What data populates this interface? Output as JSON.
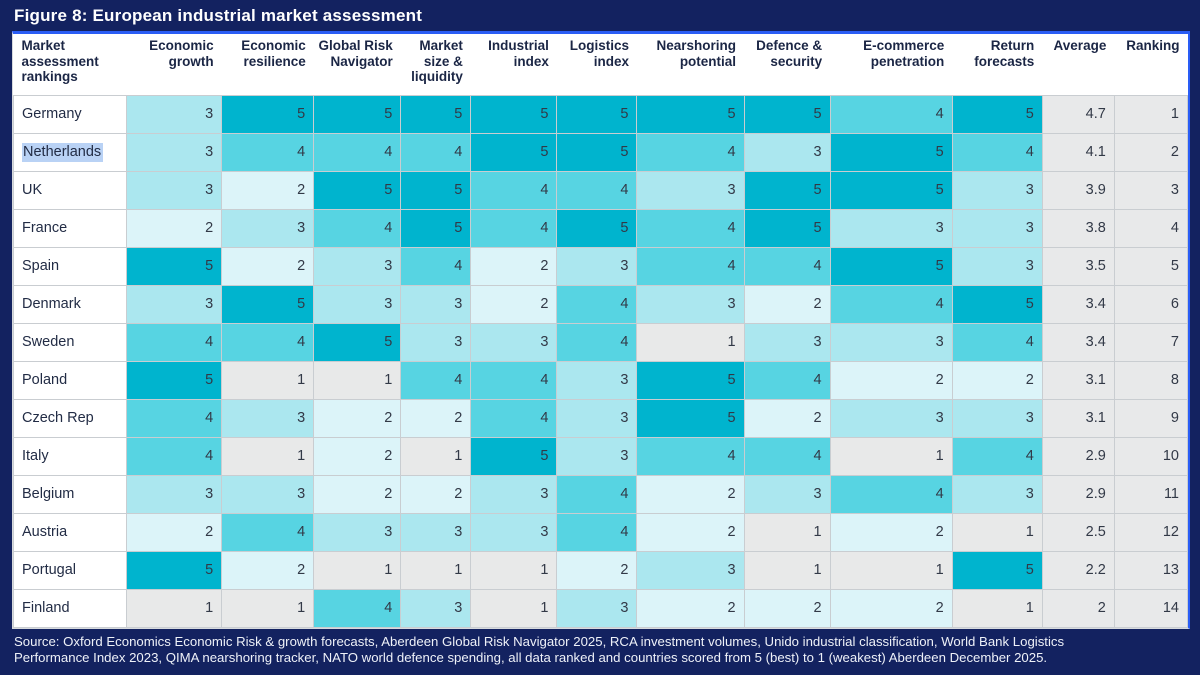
{
  "chart_data": {
    "type": "heatmap",
    "title": "Figure 8: European industrial market assessment",
    "columns": [
      "Market assessment rankings",
      "Economic growth",
      "Economic resilience",
      "Global Risk Navigator",
      "Market size & liquidity",
      "Industrial index",
      "Logistics index",
      "Nearshoring potential",
      "Defence & security",
      "E-commerce penetration",
      "Return forecasts",
      "Average",
      "Ranking"
    ],
    "score_scale": "scored from 5 (best) to 1 (weakest)",
    "score_colors": {
      "1": "#e8e9e9",
      "2": "#dcf4f9",
      "3": "#abe7ef",
      "4": "#57d4e2",
      "5": "#00b4ce"
    },
    "rows": [
      {
        "country": "Germany",
        "highlighted": false,
        "scores": [
          3,
          5,
          5,
          5,
          5,
          5,
          5,
          5,
          4,
          5
        ],
        "average": "4.7",
        "ranking": "1"
      },
      {
        "country": "Netherlands",
        "highlighted": true,
        "scores": [
          3,
          4,
          4,
          4,
          5,
          5,
          4,
          3,
          5,
          4
        ],
        "average": "4.1",
        "ranking": "2"
      },
      {
        "country": "UK",
        "highlighted": false,
        "scores": [
          3,
          2,
          5,
          5,
          4,
          4,
          3,
          5,
          5,
          3
        ],
        "average": "3.9",
        "ranking": "3"
      },
      {
        "country": "France",
        "highlighted": false,
        "scores": [
          2,
          3,
          4,
          5,
          4,
          5,
          4,
          5,
          3,
          3
        ],
        "average": "3.8",
        "ranking": "4"
      },
      {
        "country": "Spain",
        "highlighted": false,
        "scores": [
          5,
          2,
          3,
          4,
          2,
          3,
          4,
          4,
          5,
          3
        ],
        "average": "3.5",
        "ranking": "5"
      },
      {
        "country": "Denmark",
        "highlighted": false,
        "scores": [
          3,
          5,
          3,
          3,
          2,
          4,
          3,
          2,
          4,
          5
        ],
        "average": "3.4",
        "ranking": "6"
      },
      {
        "country": "Sweden",
        "highlighted": false,
        "scores": [
          4,
          4,
          5,
          3,
          3,
          4,
          1,
          3,
          3,
          4
        ],
        "average": "3.4",
        "ranking": "7"
      },
      {
        "country": "Poland",
        "highlighted": false,
        "scores": [
          5,
          1,
          1,
          4,
          4,
          3,
          5,
          4,
          2,
          2
        ],
        "average": "3.1",
        "ranking": "8"
      },
      {
        "country": "Czech Rep",
        "highlighted": false,
        "scores": [
          4,
          3,
          2,
          2,
          4,
          3,
          5,
          2,
          3,
          3
        ],
        "average": "3.1",
        "ranking": "9"
      },
      {
        "country": "Italy",
        "highlighted": false,
        "scores": [
          4,
          1,
          2,
          1,
          5,
          3,
          4,
          4,
          1,
          4
        ],
        "average": "2.9",
        "ranking": "10"
      },
      {
        "country": "Belgium",
        "highlighted": false,
        "scores": [
          3,
          3,
          2,
          2,
          3,
          4,
          2,
          3,
          4,
          3
        ],
        "average": "2.9",
        "ranking": "11"
      },
      {
        "country": "Austria",
        "highlighted": false,
        "scores": [
          2,
          4,
          3,
          3,
          3,
          4,
          2,
          1,
          2,
          1
        ],
        "average": "2.5",
        "ranking": "12"
      },
      {
        "country": "Portugal",
        "highlighted": false,
        "scores": [
          5,
          2,
          1,
          1,
          1,
          2,
          3,
          1,
          1,
          5
        ],
        "average": "2.2",
        "ranking": "13"
      },
      {
        "country": "Finland",
        "highlighted": false,
        "scores": [
          1,
          1,
          4,
          3,
          1,
          3,
          2,
          2,
          2,
          1
        ],
        "average": "2",
        "ranking": "14"
      }
    ]
  },
  "footer": {
    "line1": "Source: Oxford Economics Economic Risk & growth forecasts, Aberdeen Global Risk Navigator 2025, RCA investment volumes, Unido industrial classification, World Bank Logistics",
    "line2": "Performance Index 2023, QIMA nearshoring tracker, NATO world defence spending, all data ranked and countries scored from 5 (best) to 1 (weakest) Aberdeen December 2025."
  },
  "colors": {
    "page_background": "#132260",
    "accent_border": "#2a5df5",
    "selection_highlight": "#b9d2f5",
    "aggregate_cell": "#e8e9ea"
  }
}
